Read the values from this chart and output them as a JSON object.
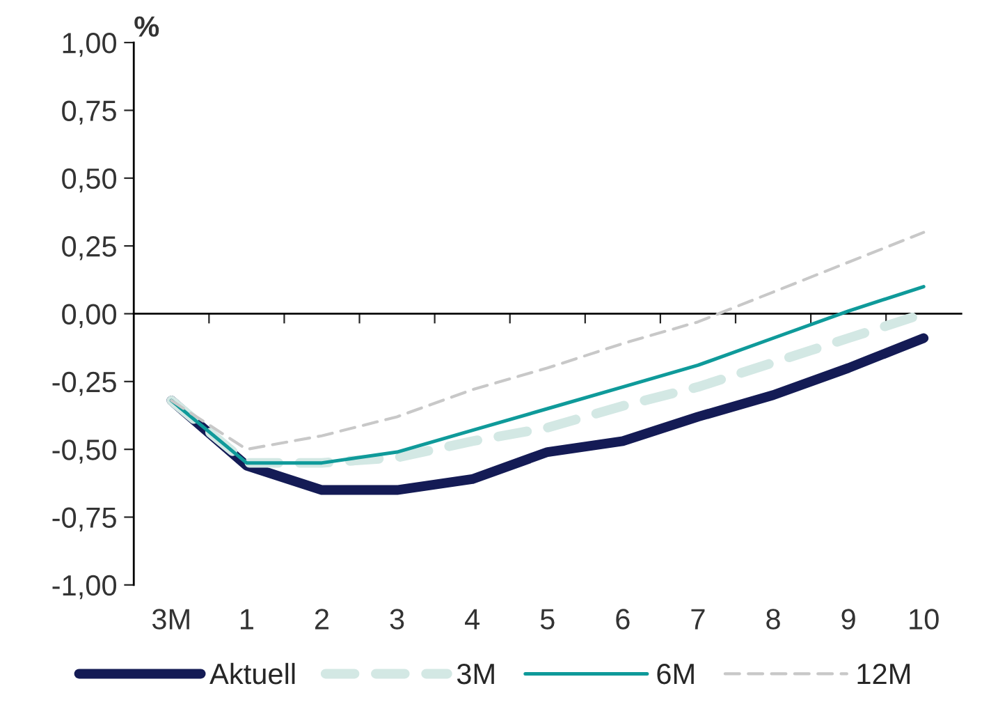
{
  "chart_data": {
    "type": "line",
    "ylabel": "%",
    "categories": [
      "3M",
      "1",
      "2",
      "3",
      "4",
      "5",
      "6",
      "7",
      "8",
      "9",
      "10"
    ],
    "series": [
      {
        "name": "Aktuell",
        "color": "#141b55",
        "line_style": "solid",
        "values": [
          -0.32,
          -0.56,
          -0.65,
          -0.65,
          -0.61,
          -0.51,
          -0.47,
          -0.38,
          -0.3,
          -0.2,
          -0.09
        ]
      },
      {
        "name": "3M",
        "color": "#d3e8e4",
        "line_style": "dashed",
        "values": [
          -0.32,
          -0.55,
          -0.55,
          -0.53,
          -0.47,
          -0.42,
          -0.34,
          -0.27,
          -0.18,
          -0.09,
          0.0
        ]
      },
      {
        "name": "6M",
        "color": "#0f9a9a",
        "line_style": "solid",
        "values": [
          -0.32,
          -0.55,
          -0.55,
          -0.51,
          -0.43,
          -0.35,
          -0.27,
          -0.19,
          -0.09,
          0.01,
          0.1
        ]
      },
      {
        "name": "12M",
        "color": "#c8c8c8",
        "line_style": "dashed",
        "values": [
          -0.32,
          -0.5,
          -0.45,
          -0.38,
          -0.28,
          -0.2,
          -0.11,
          -0.03,
          0.08,
          0.19,
          0.3
        ]
      }
    ],
    "ylim": [
      -1.0,
      1.0
    ],
    "yticks": [
      {
        "value": -1.0,
        "label": "-1,00"
      },
      {
        "value": -0.75,
        "label": "-0,75"
      },
      {
        "value": -0.5,
        "label": "-0,50"
      },
      {
        "value": -0.25,
        "label": "-0,25"
      },
      {
        "value": 0.0,
        "label": "0,00"
      },
      {
        "value": 0.25,
        "label": "0,25"
      },
      {
        "value": 0.5,
        "label": "0,50"
      },
      {
        "value": 0.75,
        "label": "0,75"
      },
      {
        "value": 1.0,
        "label": "1,00"
      }
    ],
    "legend": "bottom",
    "marker": "none"
  }
}
